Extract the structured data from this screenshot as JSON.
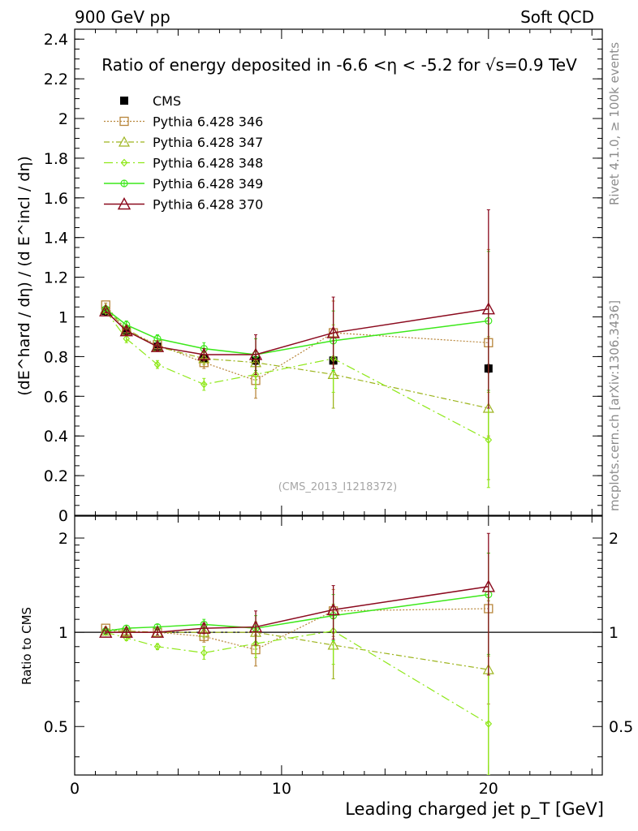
{
  "header": {
    "left": "900 GeV pp",
    "right": "Soft QCD"
  },
  "side_labels": {
    "rivet": "Rivet 4.1.0, ≥ 100k events",
    "mcplots": "mcplots.cern.ch [arXiv:1306.3436]"
  },
  "watermark": "(CMS_2013_I1218372)",
  "colors": {
    "cms": "#000000",
    "p346": "#b8863b",
    "p347": "#9db51e",
    "p348": "#8fe81a",
    "p349": "#3ce81a",
    "p370": "#8b0a1e"
  },
  "chart_data": [
    {
      "type": "line",
      "title": "Ratio of energy deposited in -6.6 <η < -5.2 for √s=0.9 TeV",
      "ylabel": "(dE^hard / dη) / (d E^incl / dη)",
      "xlabel": "",
      "xlim": [
        0,
        25.5
      ],
      "ylim": [
        0,
        2.45
      ],
      "yticks": [
        0,
        0.2,
        0.4,
        0.6,
        0.8,
        1,
        1.2,
        1.4,
        1.6,
        1.8,
        2,
        2.2,
        2.4
      ],
      "ytick_labels": [
        "0",
        "0.2",
        "0.4",
        "0.6",
        "0.8",
        "1",
        "1.2",
        "1.4",
        "1.6",
        "1.8",
        "2",
        "2.2",
        "2.4"
      ],
      "legend": "top-left",
      "series": [
        {
          "name": "CMS",
          "key": "cms",
          "marker": "square-filled",
          "dash": "none",
          "x": [
            1.5,
            2.5,
            4,
            6.25,
            8.75,
            12.5,
            20
          ],
          "y": [
            1.03,
            0.93,
            0.85,
            0.79,
            0.78,
            0.78,
            0.74
          ],
          "err": [
            0.02,
            0.02,
            0.02,
            0.02,
            0.02,
            0.02,
            0.02
          ]
        },
        {
          "name": "Pythia 6.428 346",
          "key": "p346",
          "marker": "square-open",
          "dash": "dotted",
          "x": [
            1.5,
            2.5,
            4,
            6.25,
            8.75,
            12.5,
            20
          ],
          "y": [
            1.06,
            0.93,
            0.86,
            0.77,
            0.68,
            0.92,
            0.87
          ],
          "err": [
            0.01,
            0.02,
            0.02,
            0.03,
            0.09,
            0.16,
            0.47
          ]
        },
        {
          "name": "Pythia 6.428 347",
          "key": "p347",
          "marker": "triangle-open",
          "dash": "dashdot",
          "x": [
            1.5,
            2.5,
            4,
            6.25,
            8.75,
            12.5,
            20
          ],
          "y": [
            1.04,
            0.94,
            0.85,
            0.79,
            0.77,
            0.71,
            0.54
          ],
          "err": [
            0.01,
            0.02,
            0.02,
            0.03,
            0.06,
            0.17,
            0.36
          ]
        },
        {
          "name": "Pythia 6.428 348",
          "key": "p348",
          "marker": "diamond-open",
          "dash": "longdashdot",
          "x": [
            1.5,
            2.5,
            4,
            6.25,
            8.75,
            12.5,
            20
          ],
          "y": [
            1.03,
            0.89,
            0.76,
            0.66,
            0.71,
            0.79,
            0.38
          ],
          "err": [
            0.01,
            0.02,
            0.02,
            0.03,
            0.07,
            0.17,
            0.24
          ]
        },
        {
          "name": "Pythia 6.428 349",
          "key": "p349",
          "marker": "circle-cross",
          "dash": "solid",
          "x": [
            1.5,
            2.5,
            4,
            6.25,
            8.75,
            12.5,
            20
          ],
          "y": [
            1.04,
            0.96,
            0.89,
            0.84,
            0.81,
            0.88,
            0.98
          ],
          "err": [
            0.01,
            0.02,
            0.02,
            0.03,
            0.08,
            0.15,
            0.35
          ]
        },
        {
          "name": "Pythia 6.428 370",
          "key": "p370",
          "marker": "triangle-open-big",
          "dash": "solid",
          "x": [
            1.5,
            2.5,
            4,
            6.25,
            8.75,
            12.5,
            20
          ],
          "y": [
            1.03,
            0.93,
            0.85,
            0.81,
            0.81,
            0.92,
            1.04
          ],
          "err": [
            0.01,
            0.02,
            0.02,
            0.03,
            0.1,
            0.18,
            0.5
          ]
        }
      ]
    },
    {
      "type": "line",
      "title": "",
      "ylabel": "Ratio to CMS",
      "xlabel": "Leading charged jet p_T [GeV]",
      "xlim": [
        0,
        25.5
      ],
      "ylim": [
        0.35,
        2.35
      ],
      "yscale": "log",
      "xticks": [
        0,
        10,
        20
      ],
      "xtick_labels": [
        "0",
        "10",
        "20"
      ],
      "yticks": [
        0.5,
        1,
        2
      ],
      "ytick_labels": [
        "0.5",
        "1",
        "2"
      ],
      "series": [
        {
          "name": "Pythia 6.428 346",
          "key": "p346",
          "marker": "square-open",
          "dash": "dotted",
          "x": [
            1.5,
            2.5,
            4,
            6.25,
            8.75,
            12.5,
            20
          ],
          "y": [
            1.03,
            1.0,
            1.0,
            0.97,
            0.88,
            1.17,
            1.19
          ],
          "err": [
            0.01,
            0.02,
            0.02,
            0.04,
            0.1,
            0.2,
            0.6
          ]
        },
        {
          "name": "Pythia 6.428 347",
          "key": "p347",
          "marker": "triangle-open",
          "dash": "dashdot",
          "x": [
            1.5,
            2.5,
            4,
            6.25,
            8.75,
            12.5,
            20
          ],
          "y": [
            1.01,
            1.01,
            1.0,
            1.0,
            1.0,
            0.91,
            0.76
          ],
          "err": [
            0.01,
            0.02,
            0.02,
            0.04,
            0.08,
            0.2,
            0.5
          ]
        },
        {
          "name": "Pythia 6.428 348",
          "key": "p348",
          "marker": "diamond-open",
          "dash": "longdashdot",
          "x": [
            1.5,
            2.5,
            4,
            6.25,
            8.75,
            12.5,
            20
          ],
          "y": [
            1.0,
            0.96,
            0.9,
            0.86,
            0.92,
            1.01,
            0.51
          ],
          "err": [
            0.01,
            0.02,
            0.02,
            0.04,
            0.09,
            0.22,
            0.33
          ]
        },
        {
          "name": "Pythia 6.428 349",
          "key": "p349",
          "marker": "circle-cross",
          "dash": "solid",
          "x": [
            1.5,
            2.5,
            4,
            6.25,
            8.75,
            12.5,
            20
          ],
          "y": [
            1.01,
            1.03,
            1.04,
            1.06,
            1.03,
            1.13,
            1.32
          ],
          "err": [
            0.01,
            0.02,
            0.02,
            0.04,
            0.1,
            0.19,
            0.47
          ]
        },
        {
          "name": "Pythia 6.428 370",
          "key": "p370",
          "marker": "triangle-open-big",
          "dash": "solid",
          "x": [
            1.5,
            2.5,
            4,
            6.25,
            8.75,
            12.5,
            20
          ],
          "y": [
            1.0,
            1.0,
            1.0,
            1.03,
            1.04,
            1.18,
            1.4
          ],
          "err": [
            0.01,
            0.02,
            0.02,
            0.04,
            0.13,
            0.23,
            0.67
          ]
        }
      ]
    }
  ]
}
